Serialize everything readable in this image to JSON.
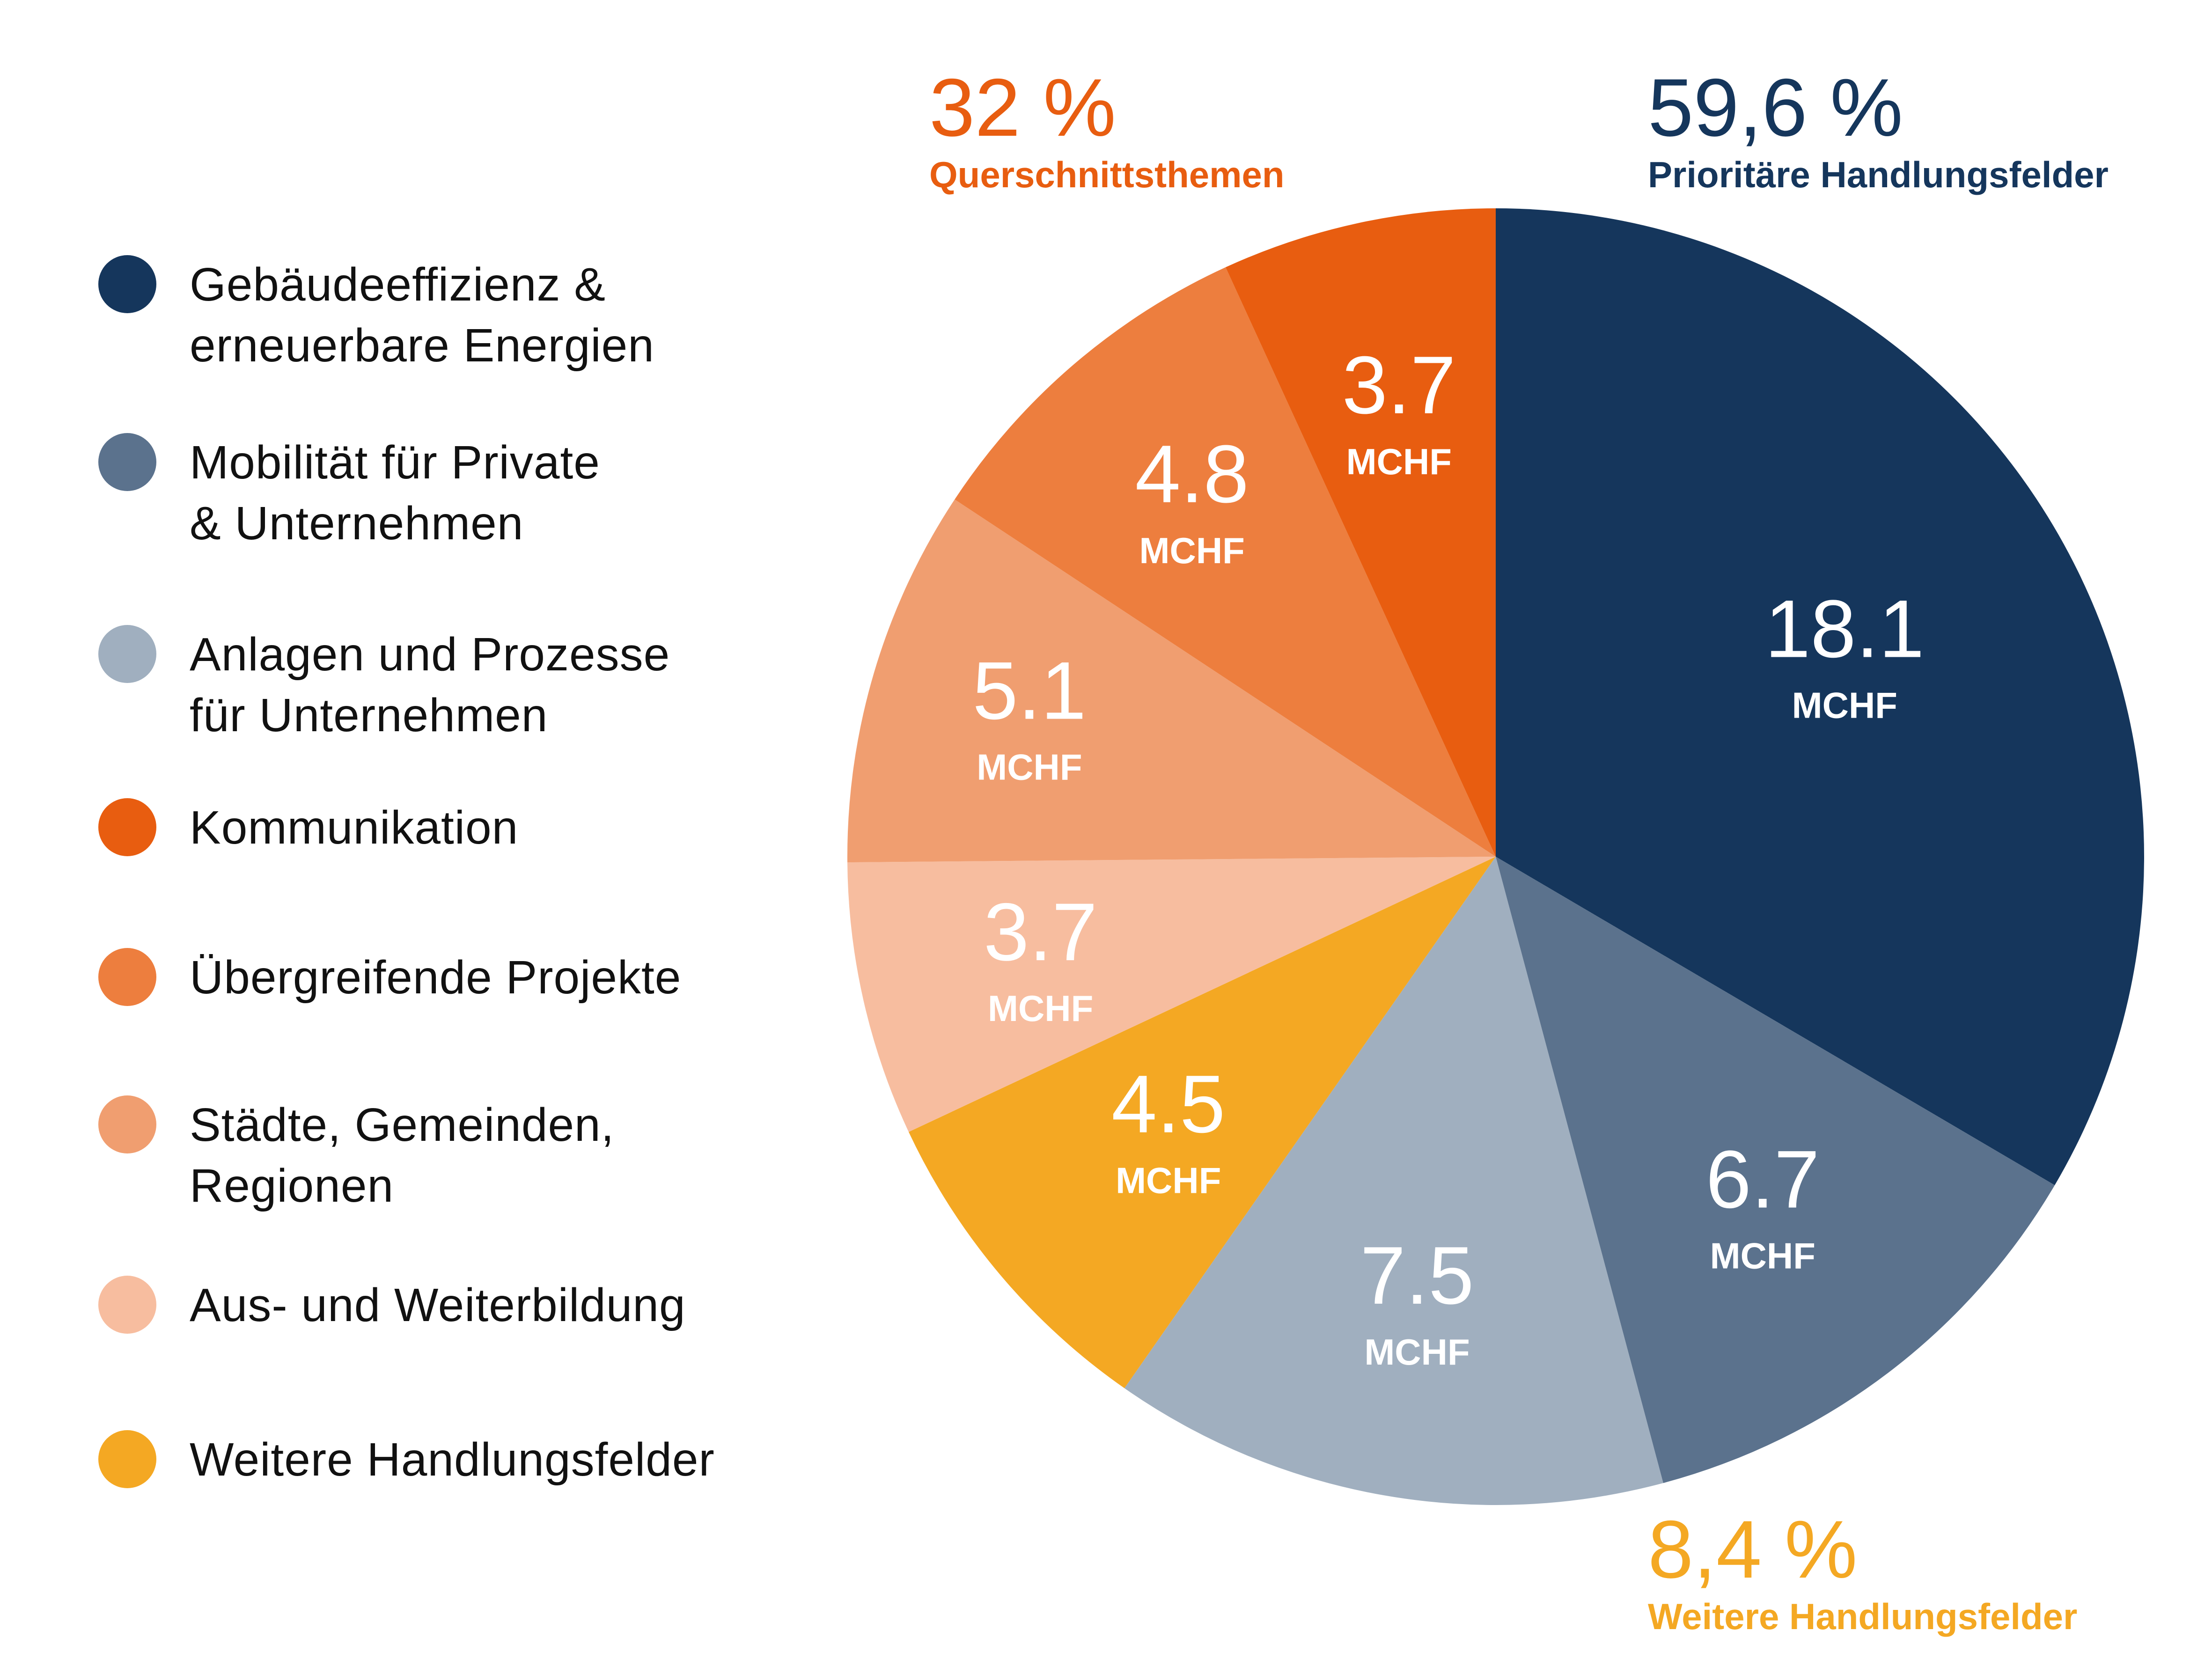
{
  "chart_data": {
    "type": "pie",
    "title": "",
    "unit": "MCHF",
    "start_angle_deg": 0,
    "direction": "clockwise",
    "slices": [
      {
        "label": "Gebäudeeffizienz & erneuerbare Energien",
        "value": 18.1,
        "value_label": "18.1",
        "color": "#15365c"
      },
      {
        "label": "Mobilität für Private & Unternehmen",
        "value": 6.7,
        "value_label": "6.7",
        "color": "#5b728d"
      },
      {
        "label": "Anlagen und Prozesse für Unternehmen",
        "value": 7.5,
        "value_label": "7.5",
        "color": "#a0afbf"
      },
      {
        "label": "Weitere Handlungsfelder",
        "value": 4.5,
        "value_label": "4.5",
        "color": "#f4a823"
      },
      {
        "label": "Aus- und Weiterbildung",
        "value": 3.7,
        "value_label": "3.7",
        "color": "#f7bd9f"
      },
      {
        "label": "Städte, Gemeinden, Regionen",
        "value": 5.1,
        "value_label": "5.1",
        "color": "#f09e70"
      },
      {
        "label": "Übergreifende Projekte",
        "value": 4.8,
        "value_label": "4.8",
        "color": "#ed7e3e"
      },
      {
        "label": "Kommunikation",
        "value": 3.7,
        "value_label": "3.7",
        "color": "#e85d10"
      }
    ],
    "groups": [
      {
        "percent": "59,6 %",
        "name": "Prioritäre Handlungsfelder",
        "color": "#15365c",
        "placement": "top-right"
      },
      {
        "percent": "32 %",
        "name": "Querschnittsthemen",
        "color": "#e85d10",
        "placement": "top-center"
      },
      {
        "percent": "8,4 %",
        "name": "Weitere Handlungsfelder",
        "color": "#f4a823",
        "placement": "bottom-right"
      }
    ]
  },
  "legend": {
    "items": [
      {
        "lines": [
          "Gebäudeeffizienz &",
          "erneuerbare Energien"
        ],
        "color": "#15365c"
      },
      {
        "lines": [
          "Mobilität für Private",
          "& Unternehmen"
        ],
        "color": "#5b728d"
      },
      {
        "lines": [
          "Anlagen und Prozesse",
          "für Unternehmen"
        ],
        "color": "#a0afbf"
      },
      {
        "lines": [
          "Kommunikation"
        ],
        "color": "#e85d10"
      },
      {
        "lines": [
          "Übergreifende Projekte"
        ],
        "color": "#ed7e3e"
      },
      {
        "lines": [
          "Städte, Gemeinden,",
          "Regionen"
        ],
        "color": "#f09e70"
      },
      {
        "lines": [
          "Aus- und Weiterbildung"
        ],
        "color": "#f7bd9f"
      },
      {
        "lines": [
          "Weitere Handlungsfelder"
        ],
        "color": "#f4a823"
      }
    ]
  }
}
